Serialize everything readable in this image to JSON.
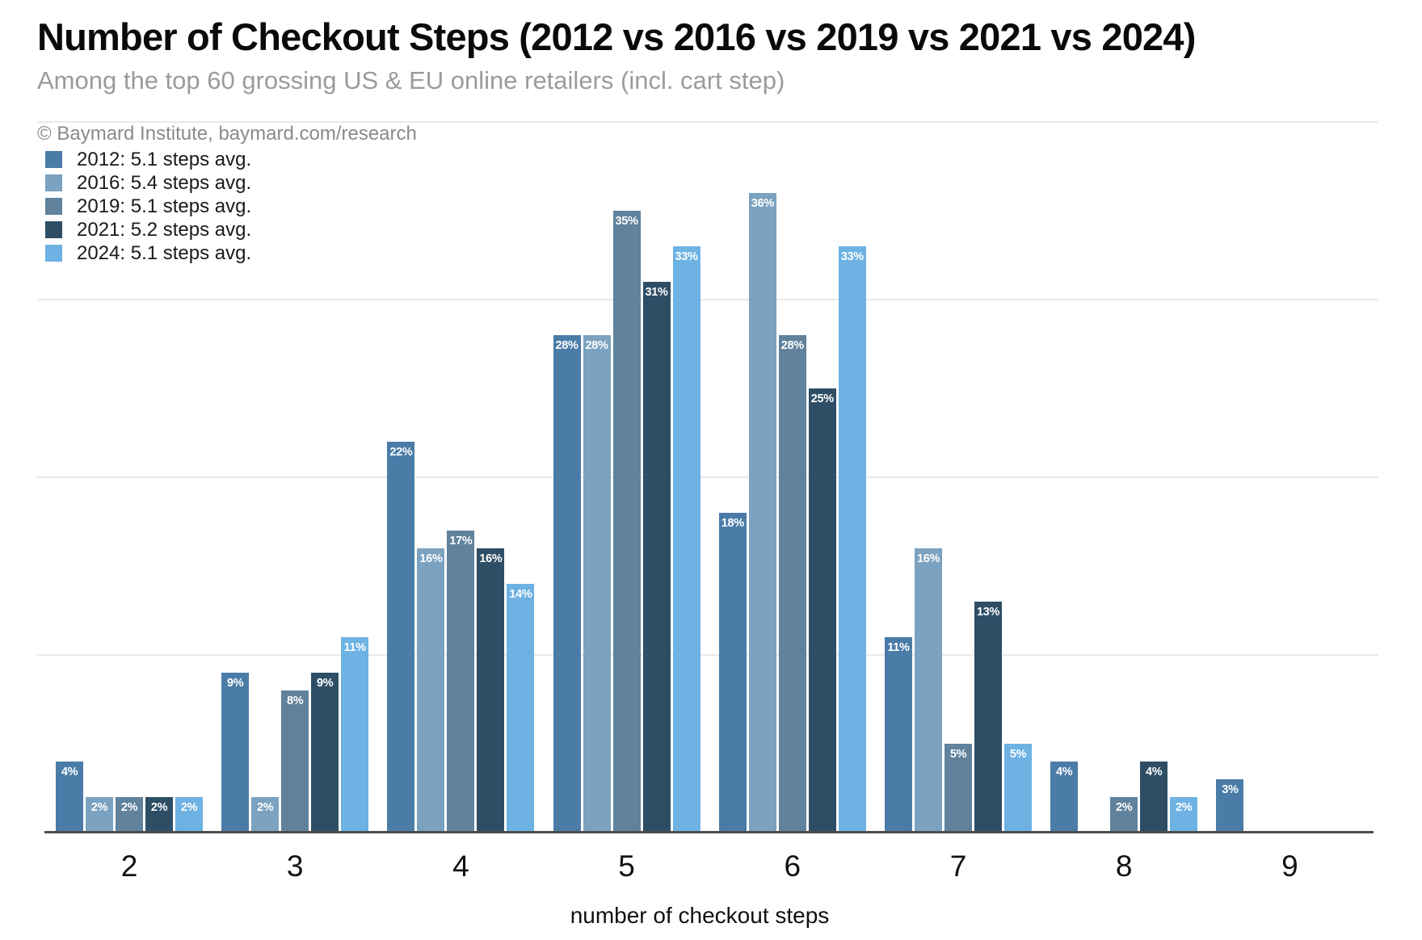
{
  "header": {
    "title": "Number of Checkout Steps (2012 vs 2016 vs 2019 vs 2021 vs 2024)",
    "subtitle": "Among the top 60 grossing US & EU online retailers (incl. cart step)",
    "attribution": "© Baymard Institute, baymard.com/research"
  },
  "chart_data": {
    "type": "bar",
    "title": "Number of Checkout Steps (2012 vs 2016 vs 2019 vs 2021 vs 2024)",
    "subtitle": "Among the top 60 grossing US & EU online retailers (incl. cart step)",
    "categories": [
      "2",
      "3",
      "4",
      "5",
      "6",
      "7",
      "8",
      "9"
    ],
    "xlabel": "number of checkout steps",
    "ylabel": "",
    "ylim": [
      0,
      42
    ],
    "grid": "horizontal",
    "gridlines_pct": [
      10,
      20,
      30,
      40
    ],
    "y_axis_tick_labels_visible": false,
    "legend_position": "top-left",
    "value_label_style": "white percent inside bar top",
    "series": [
      {
        "name": "2012",
        "legend_label": "2012: 5.1 steps avg.",
        "avg_steps": "5.1",
        "color": "#4B7CA8",
        "values": [
          4,
          9,
          22,
          28,
          18,
          11,
          4,
          3
        ]
      },
      {
        "name": "2016",
        "legend_label": "2016: 5.4 steps avg.",
        "avg_steps": "5.4",
        "color": "#7BA2C0",
        "values": [
          2,
          2,
          16,
          28,
          36,
          16,
          0,
          0
        ]
      },
      {
        "name": "2019",
        "legend_label": "2019: 5.1 steps avg.",
        "avg_steps": "5.1",
        "color": "#60829C",
        "values": [
          2,
          8,
          17,
          35,
          28,
          5,
          2,
          0
        ]
      },
      {
        "name": "2021",
        "legend_label": "2021: 5.2 steps avg.",
        "avg_steps": "5.2",
        "color": "#2E4E66",
        "values": [
          2,
          9,
          16,
          31,
          25,
          13,
          4,
          0
        ]
      },
      {
        "name": "2024",
        "legend_label": "2024: 5.1 steps avg.",
        "avg_steps": "5.1",
        "color": "#6DB2E2",
        "values": [
          2,
          11,
          14,
          33,
          33,
          5,
          2,
          0
        ]
      }
    ]
  }
}
